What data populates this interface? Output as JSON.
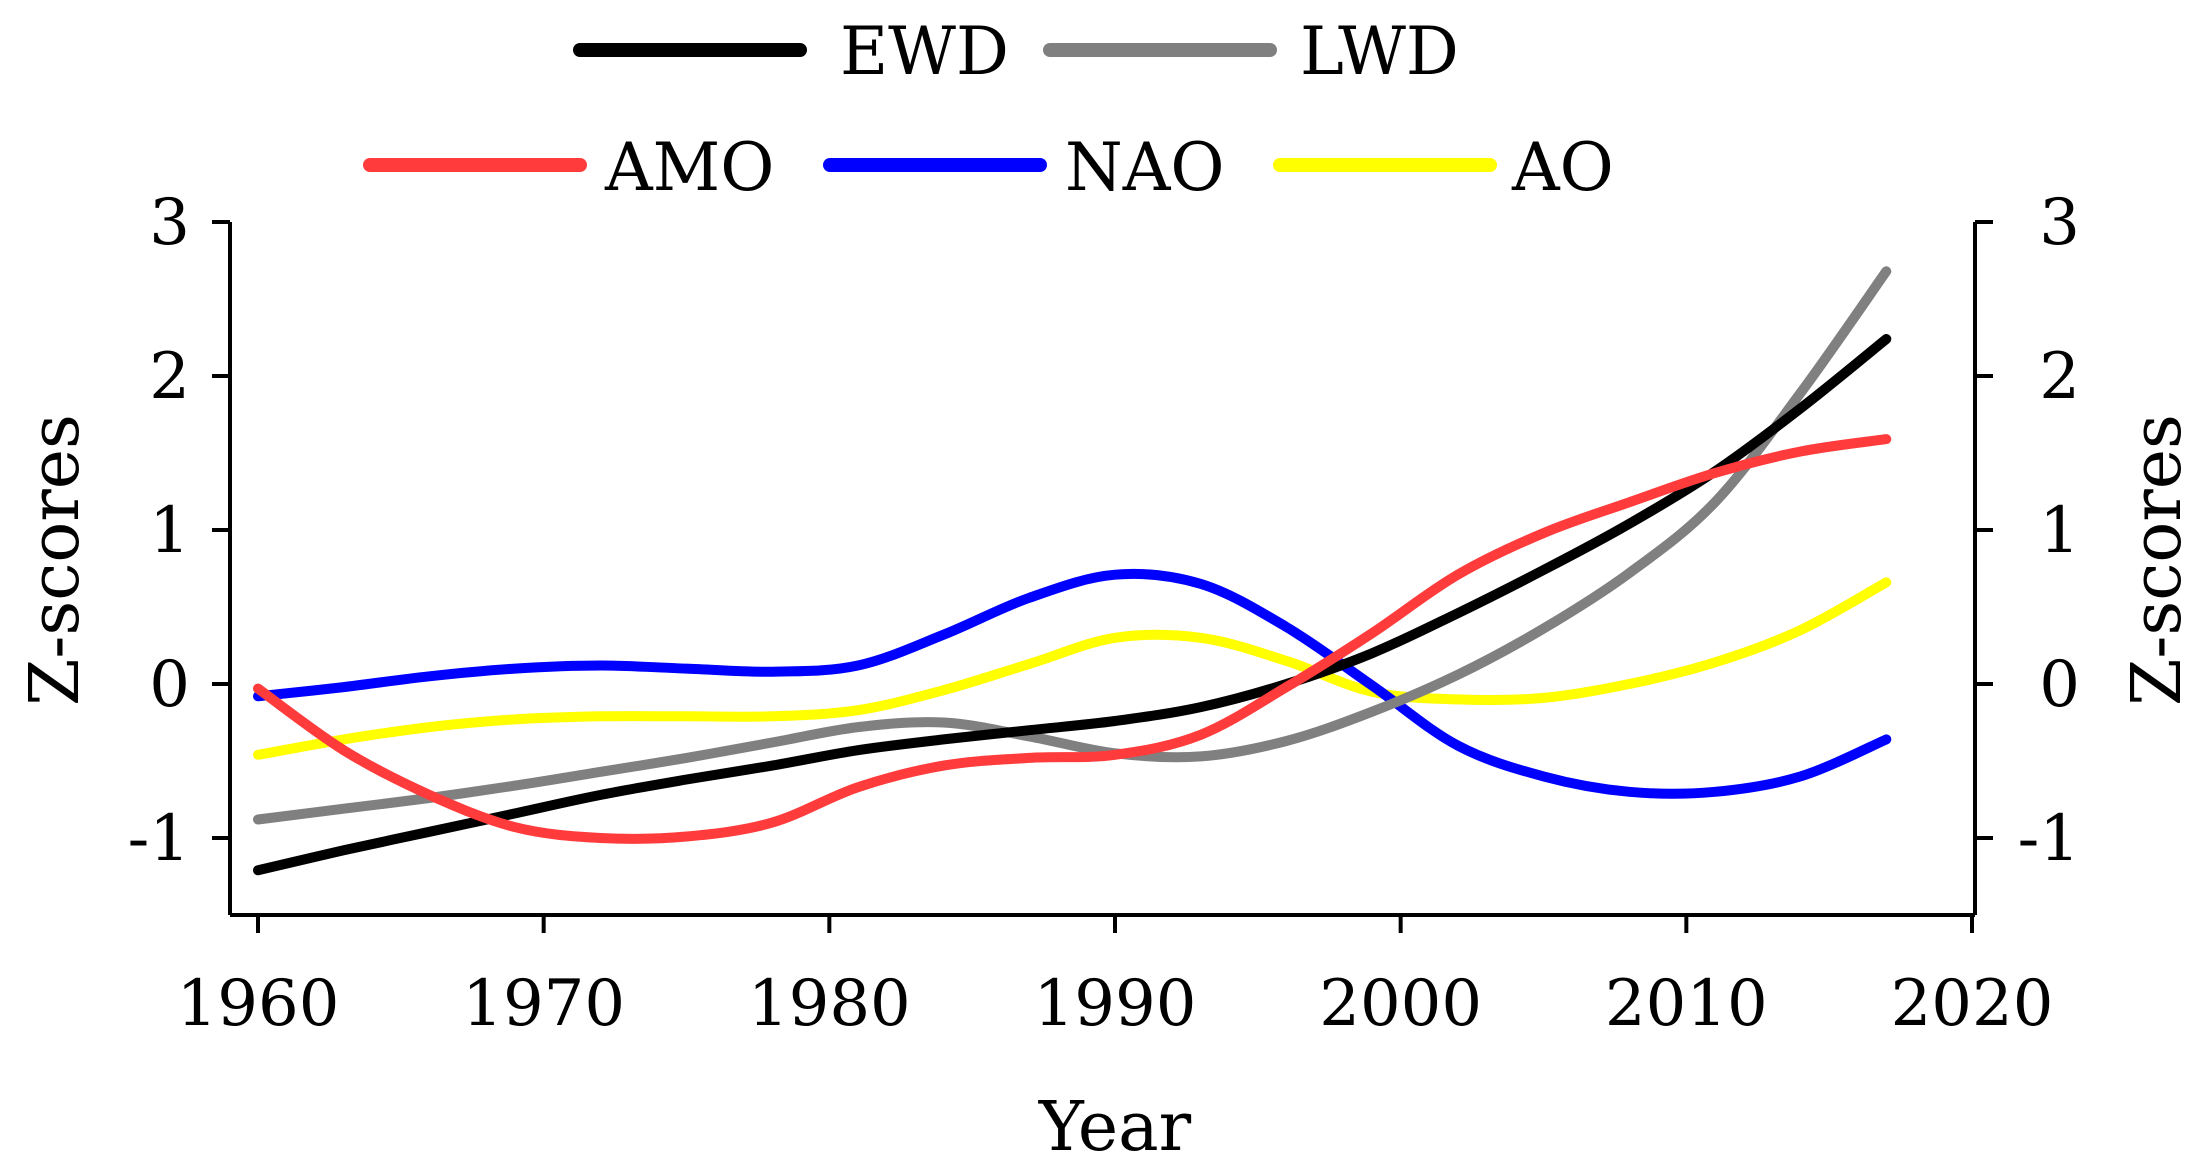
{
  "chart_data": {
    "type": "line",
    "title": "",
    "xlabel": "Year",
    "ylabel_left": "Z-scores",
    "ylabel_right": "Z-scores",
    "xlim": [
      1960,
      2020
    ],
    "ylim": [
      -1.5,
      3
    ],
    "xticks": [
      1960,
      1970,
      1980,
      1990,
      2000,
      2010,
      2020
    ],
    "yticks": [
      -1,
      0,
      1,
      2,
      3
    ],
    "ytick_labels": [
      "-1",
      "0",
      "1",
      "2",
      "3"
    ],
    "grid": false,
    "legend_position": "top",
    "x": [
      1960,
      1963,
      1966,
      1969,
      1972,
      1975,
      1978,
      1981,
      1984,
      1987,
      1990,
      1993,
      1996,
      1999,
      2002,
      2005,
      2008,
      2011,
      2014,
      2017
    ],
    "series": [
      {
        "name": "EWD",
        "color": "#000000",
        "values": [
          -1.21,
          -1.08,
          -0.96,
          -0.84,
          -0.72,
          -0.62,
          -0.53,
          -0.43,
          -0.36,
          -0.3,
          -0.24,
          -0.15,
          0.0,
          0.2,
          0.46,
          0.74,
          1.04,
          1.38,
          1.79,
          2.24
        ]
      },
      {
        "name": "LWD",
        "color": "#808080",
        "values": [
          -0.88,
          -0.81,
          -0.74,
          -0.66,
          -0.57,
          -0.48,
          -0.38,
          -0.28,
          -0.25,
          -0.34,
          -0.45,
          -0.47,
          -0.37,
          -0.18,
          0.06,
          0.36,
          0.72,
          1.18,
          1.89,
          2.68
        ]
      },
      {
        "name": "AMO",
        "color": "#ff3b3b",
        "values": [
          -0.03,
          -0.43,
          -0.72,
          -0.93,
          -1.0,
          -0.99,
          -0.9,
          -0.67,
          -0.53,
          -0.48,
          -0.46,
          -0.33,
          -0.02,
          0.33,
          0.71,
          0.98,
          1.18,
          1.37,
          1.51,
          1.59
        ]
      },
      {
        "name": "NAO",
        "color": "#0000ff",
        "values": [
          -0.08,
          -0.02,
          0.05,
          0.1,
          0.12,
          0.1,
          0.08,
          0.12,
          0.32,
          0.56,
          0.71,
          0.65,
          0.37,
          -0.01,
          -0.4,
          -0.6,
          -0.7,
          -0.7,
          -0.6,
          -0.36
        ]
      },
      {
        "name": "AO",
        "color": "#ffff00",
        "values": [
          -0.46,
          -0.36,
          -0.28,
          -0.23,
          -0.21,
          -0.21,
          -0.21,
          -0.17,
          -0.04,
          0.13,
          0.3,
          0.3,
          0.15,
          -0.05,
          -0.1,
          -0.09,
          0.0,
          0.14,
          0.35,
          0.66
        ]
      }
    ],
    "legend": {
      "row1": [
        "EWD",
        "LWD"
      ],
      "row2": [
        "AMO",
        "NAO",
        "AO"
      ]
    }
  }
}
